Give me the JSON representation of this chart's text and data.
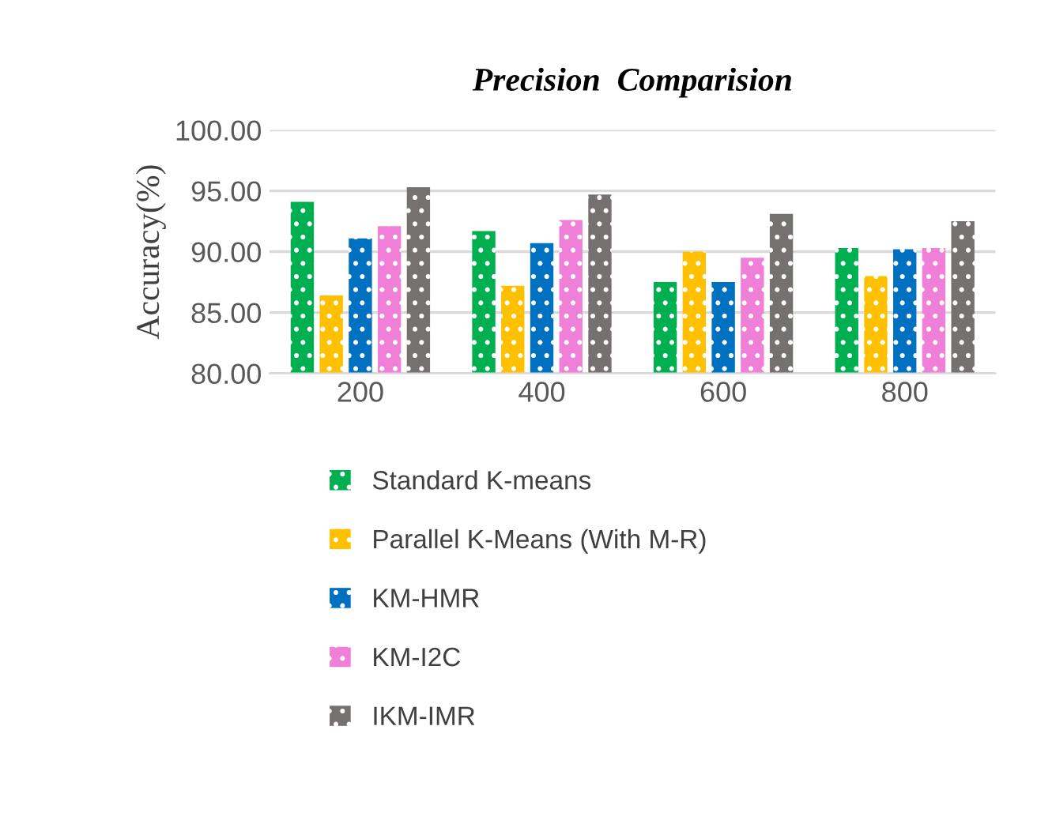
{
  "chart_data": {
    "type": "bar",
    "title": "Precision  Comparision",
    "ylabel": "Accuracy(%)",
    "categories": [
      "200",
      "400",
      "600",
      "800"
    ],
    "series": [
      {
        "name": "Standard K-means",
        "color": "#00b050",
        "values": [
          94.1,
          91.7,
          87.5,
          90.3
        ]
      },
      {
        "name": "Parallel K-Means (With M-R)",
        "color": "#ffc000",
        "values": [
          86.4,
          87.2,
          90.0,
          88.0
        ]
      },
      {
        "name": "KM-HMR",
        "color": "#0070c0",
        "values": [
          91.1,
          90.7,
          87.5,
          90.2
        ]
      },
      {
        "name": "KM-I2C",
        "color": "#f07fd8",
        "values": [
          92.1,
          92.6,
          89.5,
          90.3
        ]
      },
      {
        "name": "IKM-IMR",
        "color": "#767171",
        "values": [
          95.3,
          94.7,
          93.1,
          92.5
        ]
      }
    ],
    "ylim": [
      80,
      100
    ],
    "yticks": [
      {
        "value": 80,
        "label": "80.00"
      },
      {
        "value": 85,
        "label": "85.00"
      },
      {
        "value": 90,
        "label": "90.00"
      },
      {
        "value": 95,
        "label": "95.00"
      },
      {
        "value": 100,
        "label": "100.00"
      }
    ],
    "grid": "y",
    "legend": "bottom"
  }
}
